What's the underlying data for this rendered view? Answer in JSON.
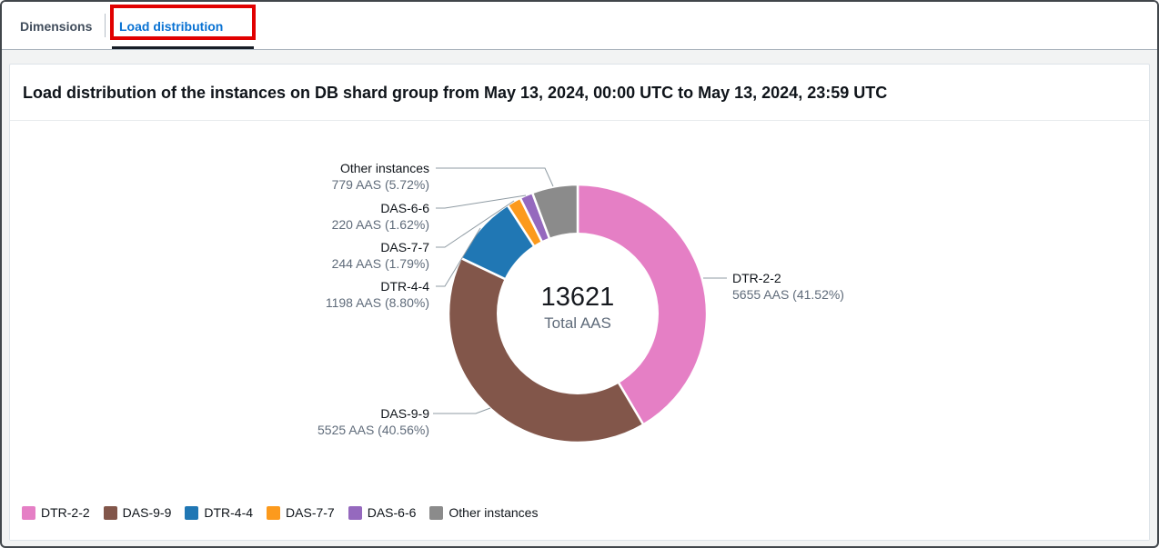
{
  "tabs": [
    {
      "label": "Dimensions",
      "active": false
    },
    {
      "label": "Load distribution",
      "active": true
    }
  ],
  "colors": {
    "active_tab": "#0972d3",
    "inactive_tab": "#414d5c",
    "annotation_highlight": "#e10000"
  },
  "panel": {
    "title": "Load distribution of the instances on DB shard group from May 13, 2024, 00:00 UTC to May 13, 2024, 23:59 UTC"
  },
  "chart_data": {
    "type": "pie",
    "subtype": "donut",
    "title": "Load distribution of the instances on DB shard group from May 13, 2024, 00:00 UTC to May 13, 2024, 23:59 UTC",
    "center_total": "13621",
    "center_label": "Total AAS",
    "total_aas": 13621,
    "unit": "AAS",
    "legend_position": "bottom-left",
    "slices": [
      {
        "label": "DTR-2-2",
        "value": 5655,
        "percent": 41.52,
        "detail": "5655 AAS (41.52%)",
        "color": "#e57fc5"
      },
      {
        "label": "DAS-9-9",
        "value": 5525,
        "percent": 40.56,
        "detail": "5525 AAS (40.56%)",
        "color": "#82564a"
      },
      {
        "label": "DTR-4-4",
        "value": 1198,
        "percent": 8.8,
        "detail": "1198 AAS (8.80%)",
        "color": "#2077b4"
      },
      {
        "label": "DAS-7-7",
        "value": 244,
        "percent": 1.79,
        "detail": "244 AAS (1.79%)",
        "color": "#fc9a1d"
      },
      {
        "label": "DAS-6-6",
        "value": 220,
        "percent": 1.62,
        "detail": "220 AAS (1.62%)",
        "color": "#9569be"
      },
      {
        "label": "Other instances",
        "value": 779,
        "percent": 5.72,
        "detail": "779 AAS (5.72%)",
        "color": "#8b8b8b"
      }
    ]
  }
}
